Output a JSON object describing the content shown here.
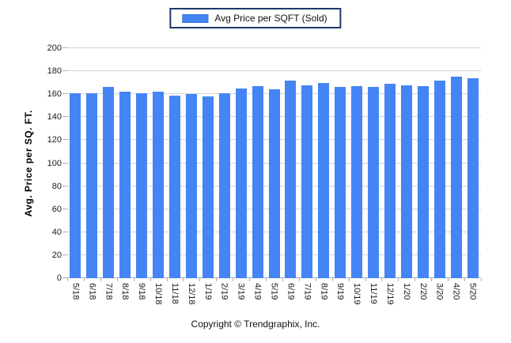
{
  "legend": {
    "label": "Avg Price per SQFT (Sold)"
  },
  "footer": {
    "copyright": "Copyright © Trendgraphix, Inc."
  },
  "colors": {
    "bar": "#4584F4",
    "bar_border": "#3A76E0",
    "legend_border": "#1B3A6B",
    "gridline": "#D4D4D4",
    "axis": "#B0B0B0"
  },
  "chart_data": {
    "type": "bar",
    "title": "",
    "xlabel": "",
    "ylabel": "Avg. Price per SQ. FT.",
    "ylim": [
      0,
      200
    ],
    "ytick_step": 20,
    "grid": true,
    "legend_position": "top-center",
    "legend": [
      "Avg Price per SQFT (Sold)"
    ],
    "categories": [
      "5/18",
      "6/18",
      "7/18",
      "8/18",
      "9/18",
      "10/18",
      "11/18",
      "12/18",
      "1/19",
      "2/19",
      "3/19",
      "4/19",
      "5/19",
      "6/19",
      "7/19",
      "8/19",
      "9/19",
      "10/19",
      "11/19",
      "12/19",
      "1/20",
      "2/20",
      "3/20",
      "4/20",
      "5/20"
    ],
    "values": [
      161,
      161,
      166,
      162,
      161,
      162,
      159,
      160,
      158,
      161,
      165,
      167,
      164,
      172,
      168,
      170,
      166,
      167,
      166,
      169,
      168,
      167,
      172,
      175,
      174
    ]
  }
}
